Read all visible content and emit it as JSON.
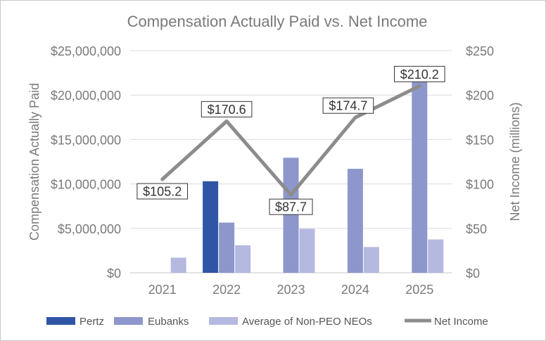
{
  "chart_data": {
    "type": "bar",
    "title": "Compensation Actually Paid vs. Net Income",
    "categories": [
      "2021",
      "2022",
      "2023",
      "2024",
      "2025"
    ],
    "ylabel": "Compensation Actually Paid",
    "y2label": "Net Income (millions)",
    "ylim": [
      0,
      25000000
    ],
    "y2lim": [
      0,
      250
    ],
    "yticks": [
      "$0",
      "$5,000,000",
      "$10,000,000",
      "$15,000,000",
      "$20,000,000",
      "$25,000,000"
    ],
    "y2ticks": [
      "$0",
      "$50",
      "$100",
      "$150",
      "$200",
      "$250"
    ],
    "grid": true,
    "legend_position": "bottom",
    "series": [
      {
        "name": "Pertz",
        "type": "bar",
        "axis": "left",
        "color": "#2f55a4",
        "values": [
          null,
          10300000,
          null,
          null,
          null
        ]
      },
      {
        "name": "Eubanks",
        "type": "bar",
        "axis": "left",
        "color": "#8e97cb",
        "values": [
          null,
          5650000,
          12950000,
          11700000,
          21700000
        ]
      },
      {
        "name": "Average of Non-PEO NEOs",
        "type": "bar",
        "axis": "left",
        "color": "#b5b9e0",
        "values": [
          1700000,
          3100000,
          4950000,
          2900000,
          3750000
        ]
      },
      {
        "name": "Net Income",
        "type": "line",
        "axis": "right",
        "color": "#8c8c8c",
        "values": [
          105.2,
          170.6,
          87.7,
          174.7,
          210.2
        ],
        "labels": [
          "$105.2",
          "$170.6",
          "$87.7",
          "$174.7",
          "$210.2"
        ]
      }
    ]
  }
}
